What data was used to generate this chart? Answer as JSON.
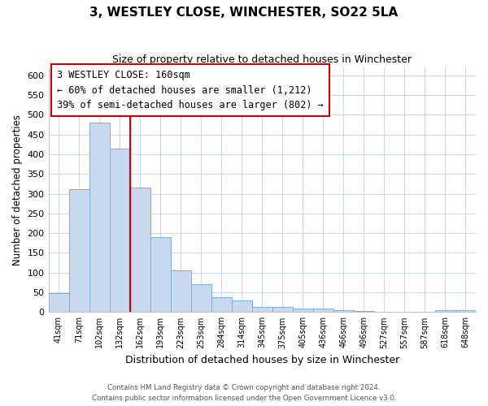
{
  "title": "3, WESTLEY CLOSE, WINCHESTER, SO22 5LA",
  "subtitle": "Size of property relative to detached houses in Winchester",
  "xlabel": "Distribution of detached houses by size in Winchester",
  "ylabel": "Number of detached properties",
  "bar_color": "#c8d9ef",
  "bar_edge_color": "#7bafd4",
  "categories": [
    "41sqm",
    "71sqm",
    "102sqm",
    "132sqm",
    "162sqm",
    "193sqm",
    "223sqm",
    "253sqm",
    "284sqm",
    "314sqm",
    "345sqm",
    "375sqm",
    "405sqm",
    "436sqm",
    "466sqm",
    "496sqm",
    "527sqm",
    "557sqm",
    "587sqm",
    "618sqm",
    "648sqm"
  ],
  "values": [
    47,
    312,
    480,
    415,
    315,
    190,
    105,
    70,
    38,
    30,
    14,
    14,
    8,
    8,
    4,
    3,
    1,
    1,
    0,
    5,
    4
  ],
  "ylim": [
    0,
    620
  ],
  "yticks": [
    0,
    50,
    100,
    150,
    200,
    250,
    300,
    350,
    400,
    450,
    500,
    550,
    600
  ],
  "vline_color": "#cc0000",
  "annotation_title": "3 WESTLEY CLOSE: 160sqm",
  "annotation_line1": "← 60% of detached houses are smaller (1,212)",
  "annotation_line2": "39% of semi-detached houses are larger (802) →",
  "annotation_box_color": "#ffffff",
  "annotation_box_edge": "#cc0000",
  "footer_line1": "Contains HM Land Registry data © Crown copyright and database right 2024.",
  "footer_line2": "Contains public sector information licensed under the Open Government Licence v3.0.",
  "bg_color": "#ffffff",
  "grid_color": "#c8d4e8"
}
